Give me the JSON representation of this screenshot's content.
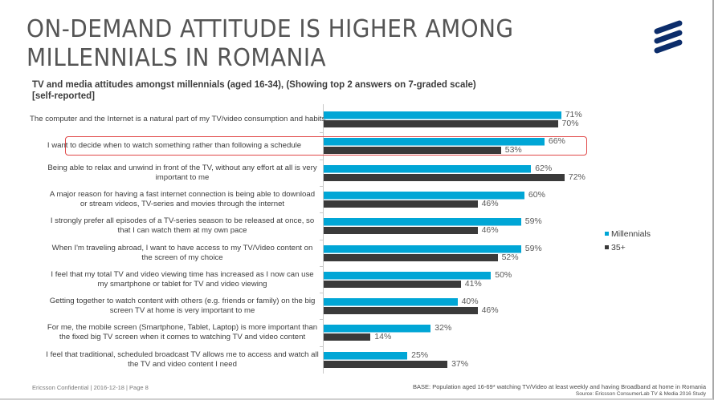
{
  "title": {
    "line1": "ON-DEMAND ATTITUDE IS HIGHER AMONG",
    "line2": "MILLENNIALS IN ROMANIA"
  },
  "logo": {
    "name": "ericsson-logo",
    "color": "#0c2d6b"
  },
  "subtitle": {
    "line1": "TV and media attitudes amongst millennials (aged 16-34),  (Showing top 2 answers on 7-graded scale)",
    "line2": "[self-reported]"
  },
  "chart_data": {
    "type": "bar",
    "orientation": "horizontal",
    "title": "TV and media attitudes amongst millennials (aged 16-34),  (Showing top 2 answers on 7-graded scale) [self-reported]",
    "xlabel": "",
    "ylabel": "",
    "xlim": [
      0,
      100
    ],
    "unit": "%",
    "grid": false,
    "legend_position": "right",
    "categories": [
      "The computer and the Internet is a natural part of my TV/video consumption and habits",
      "I want to decide when to watch something rather than following a schedule",
      "Being able to relax and unwind in front of the TV, without any effort at all is very important to me",
      "A major reason for having a fast internet connection is being able to download or stream videos, TV-series and movies through the internet",
      "I strongly prefer all episodes of a TV-series season to be released at once, so that I can watch them at my own pace",
      "When I'm traveling abroad, I want to have access to my TV/Video content on the screen of my choice",
      "I feel that my total TV and video viewing time has increased as I now can use my smartphone or tablet for TV and video viewing",
      "Getting together to watch content with others (e.g. friends or family) on the big screen TV at home is very important to me",
      "For me, the mobile screen (Smartphone, Tablet, Laptop) is more important than the fixed big TV screen when it comes to watching TV and video content",
      "I feel that traditional, scheduled broadcast TV allows me to access and watch all the TV and video content I need"
    ],
    "series": [
      {
        "name": "Millennials",
        "color": "#00a6d6",
        "values": [
          71,
          66,
          62,
          60,
          59,
          59,
          50,
          40,
          32,
          25
        ]
      },
      {
        "name": "35+",
        "color": "#3a3a3a",
        "values": [
          70,
          53,
          72,
          46,
          46,
          52,
          41,
          46,
          14,
          37
        ]
      }
    ],
    "highlighted_category_index": 1,
    "highlight_color": "#e04848"
  },
  "footer": {
    "left": "Ericsson Confidential  |  2016-12-18  |  Page 8",
    "base": "BASE: Population aged 16-69* watching TV/Video at least weekly and having Broadband at home in Romania",
    "source": "Source: Ericsson ConsumerLab TV & Media 2016 Study"
  }
}
